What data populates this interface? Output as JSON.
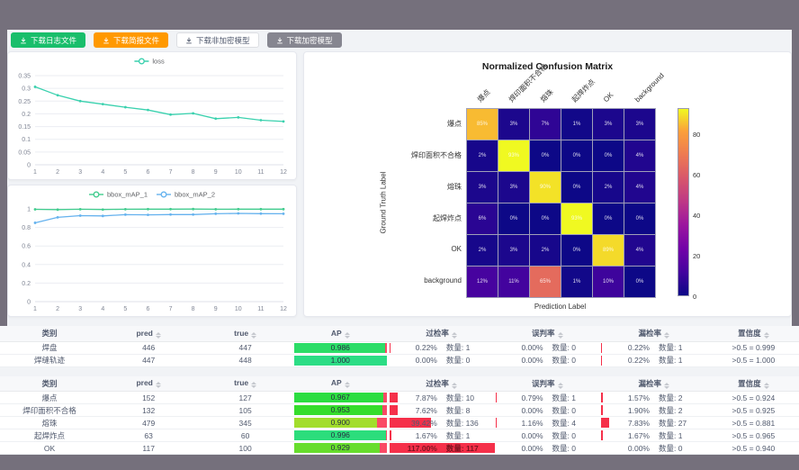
{
  "window": {
    "chrome_color": "#75707c",
    "content_bg": "#f1f3f6"
  },
  "toolbar": {
    "buttons": [
      {
        "label": "下载日志文件",
        "variant": "success",
        "icon": "download-icon"
      },
      {
        "label": "下载简报文件",
        "variant": "warning",
        "icon": "download-icon"
      },
      {
        "label": "下载非加密模型",
        "variant": "default",
        "icon": "download-icon"
      },
      {
        "label": "下载加密模型",
        "variant": "gray",
        "icon": "download-icon"
      }
    ]
  },
  "chart_data": [
    {
      "id": "loss",
      "type": "line",
      "legend_position": "top",
      "grid": true,
      "x": [
        1,
        2,
        3,
        4,
        5,
        6,
        7,
        8,
        9,
        10,
        11,
        12
      ],
      "ylim": [
        0,
        0.35
      ],
      "yticks": [
        0,
        0.05,
        0.1,
        0.15,
        0.2,
        0.25,
        0.3,
        0.35
      ],
      "series": [
        {
          "name": "loss",
          "color": "#3ad1ae",
          "values": [
            0.306,
            0.273,
            0.25,
            0.238,
            0.226,
            0.215,
            0.197,
            0.202,
            0.181,
            0.186,
            0.175,
            0.17
          ]
        }
      ]
    },
    {
      "id": "bbox_map",
      "type": "line",
      "legend_position": "top",
      "grid": true,
      "x": [
        1,
        2,
        3,
        4,
        5,
        6,
        7,
        8,
        9,
        10,
        11,
        12
      ],
      "ylim": [
        0,
        1
      ],
      "yticks": [
        0,
        0.2,
        0.4,
        0.6,
        0.8,
        1
      ],
      "series": [
        {
          "name": "bbox_mAP_1",
          "color": "#41cc8e",
          "values": [
            0.995,
            0.992,
            0.996,
            0.993,
            0.996,
            0.997,
            0.997,
            0.998,
            0.996,
            0.997,
            0.997,
            0.997
          ]
        },
        {
          "name": "bbox_mAP_2",
          "color": "#65b2ee",
          "values": [
            0.85,
            0.909,
            0.927,
            0.924,
            0.938,
            0.936,
            0.939,
            0.939,
            0.948,
            0.951,
            0.949,
            0.948
          ]
        }
      ]
    },
    {
      "id": "confusion_matrix",
      "type": "heatmap",
      "title": "Normalized Confusion Matrix",
      "xlabel": "Prediction Label",
      "ylabel": "Ground Truth Label",
      "categories": [
        "爆点",
        "焊印面积不合格",
        "熔珠",
        "起焊炸点",
        "OK",
        "background"
      ],
      "unit": "%",
      "vmax": 93,
      "colormap": "plasma",
      "colorbar_ticks": [
        0,
        20,
        40,
        60,
        80
      ],
      "values": [
        [
          85,
          3,
          7,
          1,
          3,
          3
        ],
        [
          2,
          93,
          0,
          0,
          0,
          4
        ],
        [
          3,
          3,
          90,
          0,
          2,
          4
        ],
        [
          6,
          0,
          0,
          93,
          0,
          0
        ],
        [
          2,
          3,
          2,
          0,
          89,
          4
        ],
        [
          12,
          11,
          65,
          1,
          10,
          0
        ]
      ]
    }
  ],
  "labels": {
    "count": "数量:"
  },
  "tables": [
    {
      "headers": [
        {
          "label": "类别",
          "sortable": false
        },
        {
          "label": "pred",
          "sortable": true
        },
        {
          "label": "true",
          "sortable": true
        },
        {
          "label": "AP",
          "sortable": true
        },
        {
          "label": "过检率",
          "sortable": true
        },
        {
          "label": "误判率",
          "sortable": true
        },
        {
          "label": "漏检率",
          "sortable": true
        },
        {
          "label": "置信度",
          "sortable": true
        }
      ],
      "rows": [
        {
          "category": "焊盘",
          "pred": "446",
          "true": "447",
          "ap": "0.986",
          "over": {
            "rate": "0.22%",
            "count": "1",
            "pct": 0.22
          },
          "mis": {
            "rate": "0.00%",
            "count": "0",
            "pct": 0
          },
          "miss": {
            "rate": "0.22%",
            "count": "1",
            "pct": 0.22
          },
          "conf": ">0.5 = 0.999"
        },
        {
          "category": "焊缝轨迹",
          "pred": "447",
          "true": "448",
          "ap": "1.000",
          "over": {
            "rate": "0.00%",
            "count": "0",
            "pct": 0
          },
          "mis": {
            "rate": "0.00%",
            "count": "0",
            "pct": 0
          },
          "miss": {
            "rate": "0.22%",
            "count": "1",
            "pct": 0.22
          },
          "conf": ">0.5 = 1.000"
        }
      ]
    },
    {
      "headers": [
        {
          "label": "类别",
          "sortable": false
        },
        {
          "label": "pred",
          "sortable": true
        },
        {
          "label": "true",
          "sortable": true
        },
        {
          "label": "AP",
          "sortable": true
        },
        {
          "label": "过检率",
          "sortable": true
        },
        {
          "label": "误判率",
          "sortable": true
        },
        {
          "label": "漏检率",
          "sortable": true
        },
        {
          "label": "置信度",
          "sortable": true
        }
      ],
      "rows": [
        {
          "category": "爆点",
          "pred": "152",
          "true": "127",
          "ap": "0.967",
          "over": {
            "rate": "7.87%",
            "count": "10",
            "pct": 7.87
          },
          "mis": {
            "rate": "0.79%",
            "count": "1",
            "pct": 0.79
          },
          "miss": {
            "rate": "1.57%",
            "count": "2",
            "pct": 1.57
          },
          "conf": ">0.5 = 0.924"
        },
        {
          "category": "焊印面积不合格",
          "pred": "132",
          "true": "105",
          "ap": "0.953",
          "over": {
            "rate": "7.62%",
            "count": "8",
            "pct": 7.62
          },
          "mis": {
            "rate": "0.00%",
            "count": "0",
            "pct": 0
          },
          "miss": {
            "rate": "1.90%",
            "count": "2",
            "pct": 1.9
          },
          "conf": ">0.5 = 0.925"
        },
        {
          "category": "熔珠",
          "pred": "479",
          "true": "345",
          "ap": "0.900",
          "over": {
            "rate": "39.42%",
            "count": "136",
            "pct": 39.42
          },
          "mis": {
            "rate": "1.16%",
            "count": "4",
            "pct": 1.16
          },
          "miss": {
            "rate": "7.83%",
            "count": "27",
            "pct": 7.83
          },
          "conf": ">0.5 = 0.881"
        },
        {
          "category": "起焊炸点",
          "pred": "63",
          "true": "60",
          "ap": "0.996",
          "over": {
            "rate": "1.67%",
            "count": "1",
            "pct": 1.67
          },
          "mis": {
            "rate": "0.00%",
            "count": "0",
            "pct": 0
          },
          "miss": {
            "rate": "1.67%",
            "count": "1",
            "pct": 1.67
          },
          "conf": ">0.5 = 0.965"
        },
        {
          "category": "OK",
          "pred": "117",
          "true": "100",
          "ap": "0.929",
          "over": {
            "rate": "117.00%",
            "count": "117",
            "pct": 117
          },
          "mis": {
            "rate": "0.00%",
            "count": "0",
            "pct": 0
          },
          "miss": {
            "rate": "0.00%",
            "count": "0",
            "pct": 0
          },
          "conf": ">0.5 = 0.940"
        }
      ]
    }
  ]
}
